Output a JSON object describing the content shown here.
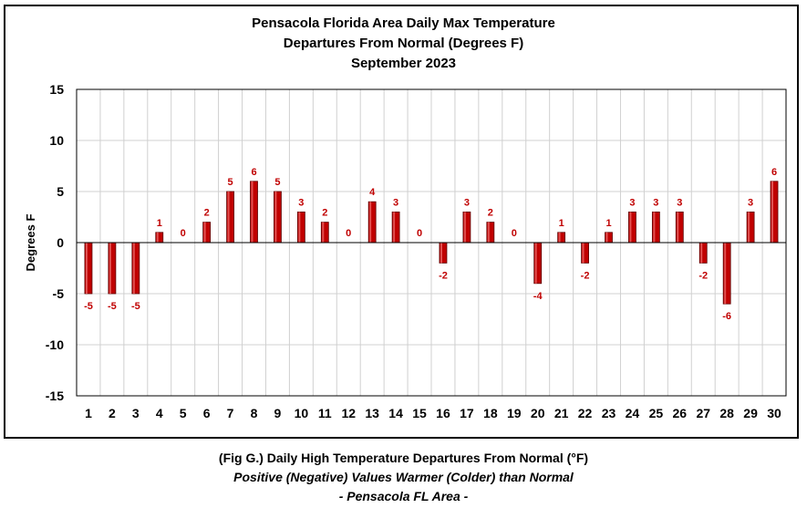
{
  "chart_data": {
    "type": "bar",
    "title": [
      "Pensacola Florida Area Daily Max Temperature",
      "Departures From Normal (Degrees F)",
      "September 2023"
    ],
    "ylabel": "Degrees F",
    "xlabel": "",
    "categories": [
      "1",
      "2",
      "3",
      "4",
      "5",
      "6",
      "7",
      "8",
      "9",
      "10",
      "11",
      "12",
      "13",
      "14",
      "15",
      "16",
      "17",
      "18",
      "19",
      "20",
      "21",
      "22",
      "23",
      "24",
      "25",
      "26",
      "27",
      "28",
      "29",
      "30"
    ],
    "values": [
      -5,
      -5,
      -5,
      1,
      0,
      2,
      5,
      6,
      5,
      3,
      2,
      0,
      4,
      3,
      0,
      -2,
      3,
      2,
      0,
      -4,
      1,
      -2,
      1,
      3,
      3,
      3,
      -2,
      -6,
      3,
      6
    ],
    "ylim": [
      -15,
      15
    ],
    "yticks": [
      -15,
      -10,
      -5,
      0,
      5,
      10,
      15
    ],
    "grid": true,
    "bar_color": "#c00000",
    "label_color": "#c00000"
  },
  "caption": {
    "line1": "(Fig G.) Daily High Temperature Departures From Normal (°F)",
    "line2": "Positive (Negative) Values Warmer (Colder) than Normal",
    "line3": "- Pensacola FL Area -"
  }
}
